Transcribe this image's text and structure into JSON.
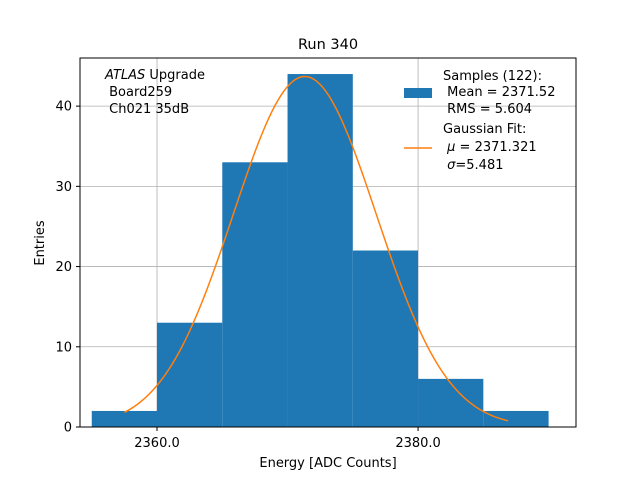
{
  "chart_data": {
    "type": "bar",
    "title": "Run 340",
    "xlabel": "Energy [ADC Counts]",
    "ylabel": "Entries",
    "xlim": [
      2354.1,
      2392.1
    ],
    "ylim": [
      0,
      46
    ],
    "grid": true,
    "xticks": [
      2360,
      2380
    ],
    "xtick_labels": [
      "2360.0",
      "2380.0"
    ],
    "yticks": [
      0,
      10,
      20,
      30,
      40
    ],
    "ytick_labels": [
      "0",
      "10",
      "20",
      "30",
      "40"
    ],
    "bins": [
      {
        "x0": 2355.0,
        "x1": 2360.0,
        "value": 2
      },
      {
        "x0": 2360.0,
        "x1": 2365.0,
        "value": 13
      },
      {
        "x0": 2365.0,
        "x1": 2370.0,
        "value": 33
      },
      {
        "x0": 2370.0,
        "x1": 2375.0,
        "value": 44
      },
      {
        "x0": 2375.0,
        "x1": 2380.0,
        "value": 22
      },
      {
        "x0": 2380.0,
        "x1": 2385.0,
        "value": 6
      },
      {
        "x0": 2385.0,
        "x1": 2390.0,
        "value": 2
      }
    ],
    "fit": {
      "type": "gaussian",
      "mu": 2371.321,
      "sigma": 5.481,
      "amplitude": 43.7,
      "x_range": [
        2357.5,
        2386.9
      ]
    },
    "annotation": {
      "italic": "ATLAS",
      "rest": " Upgrade",
      "line2": " Board259",
      "line3": " Ch021 35dB"
    },
    "legend": {
      "placement": "top-right",
      "samples_line1": "Samples (122):",
      "samples_line2": " Mean = 2371.52",
      "samples_line3": " RMS = 5.604",
      "fit_line1": "Gaussian Fit:",
      "fit_mu_prefix": " ",
      "fit_mu_symbol": "μ",
      "fit_mu_text": " = 2371.321",
      "fit_sigma_prefix": " ",
      "fit_sigma_symbol": "σ",
      "fit_sigma_text": "=5.481"
    },
    "colors": {
      "bar": "#1f77b4",
      "fit": "#ff7f0e",
      "grid": "#b0b0b0"
    }
  }
}
